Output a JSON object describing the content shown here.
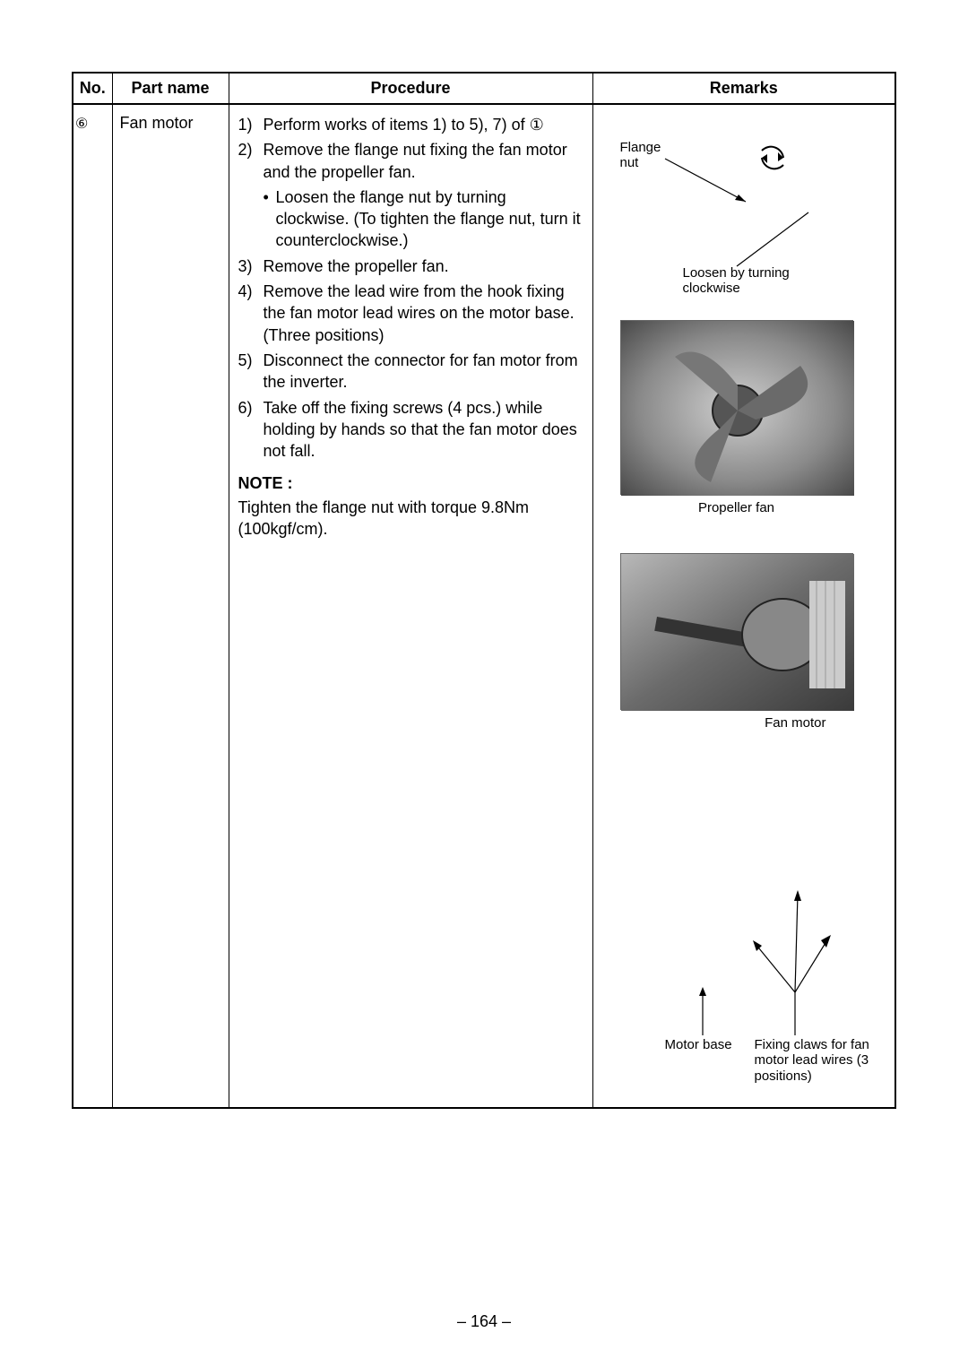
{
  "table": {
    "headers": {
      "no": "No.",
      "part": "Part name",
      "proc": "Procedure",
      "rem": "Remarks"
    },
    "row": {
      "no_symbol": "⑥",
      "part_name": "Fan motor",
      "steps": [
        {
          "n": "1)",
          "t": "Perform works of items 1) to 5), 7) of ①"
        },
        {
          "n": "2)",
          "t": "Remove the flange nut fixing the fan motor and the propeller fan."
        },
        {
          "n": "3)",
          "t": "Remove the propeller fan."
        },
        {
          "n": "4)",
          "t": "Remove the lead wire from the hook fixing the fan motor lead wires on the motor base. (Three positions)"
        },
        {
          "n": "5)",
          "t": "Disconnect the connector for fan motor from the inverter."
        },
        {
          "n": "6)",
          "t": "Take off the fixing screws (4 pcs.) while holding by hands so that the fan motor does not fall."
        }
      ],
      "sub_bullet": "•",
      "sub_text": "Loosen the flange nut by turning clockwise. (To tighten the flange nut, turn it counterclockwise.)",
      "note_head": "NOTE :",
      "note_body": "Tighten the flange nut with torque 9.8Nm (100kgf/cm)."
    }
  },
  "remarks": {
    "flange_label": "Flange\nnut",
    "loosen_label": "Loosen by turning\nclockwise",
    "caption_propeller": "Propeller fan",
    "caption_fanmotor": "Fan motor",
    "motorbase_label": "Motor base",
    "claws_label": "Fixing claws for fan motor lead wires (3 positions)"
  },
  "page_number": "– 164 –",
  "colors": {
    "text": "#000000",
    "border": "#000000",
    "photo_gray": "#888888"
  }
}
